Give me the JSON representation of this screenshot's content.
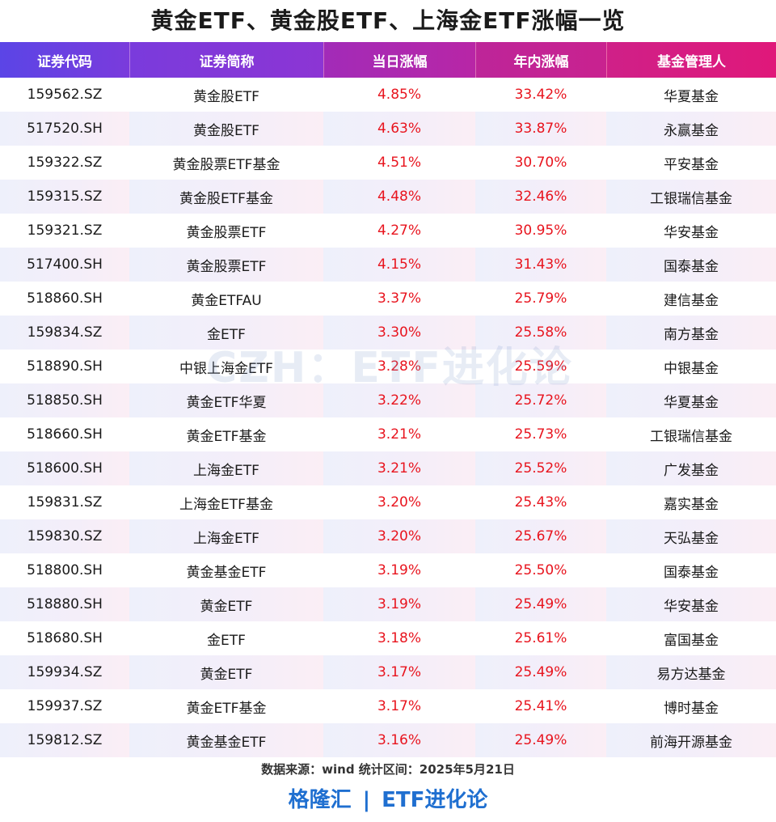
{
  "title": "黄金ETF、黄金股ETF、上海金ETF涨幅一览",
  "columns": [
    "证券代码",
    "证券简称",
    "当日涨幅",
    "年内涨幅",
    "基金管理人"
  ],
  "rows": [
    {
      "code": "159562.SZ",
      "name": "黄金股ETF",
      "day": "4.85%",
      "ytd": "33.42%",
      "manager": "华夏基金"
    },
    {
      "code": "517520.SH",
      "name": "黄金股ETF",
      "day": "4.63%",
      "ytd": "33.87%",
      "manager": "永赢基金"
    },
    {
      "code": "159322.SZ",
      "name": "黄金股票ETF基金",
      "day": "4.51%",
      "ytd": "30.70%",
      "manager": "平安基金"
    },
    {
      "code": "159315.SZ",
      "name": "黄金股ETF基金",
      "day": "4.48%",
      "ytd": "32.46%",
      "manager": "工银瑞信基金"
    },
    {
      "code": "159321.SZ",
      "name": "黄金股票ETF",
      "day": "4.27%",
      "ytd": "30.95%",
      "manager": "华安基金"
    },
    {
      "code": "517400.SH",
      "name": "黄金股票ETF",
      "day": "4.15%",
      "ytd": "31.43%",
      "manager": "国泰基金"
    },
    {
      "code": "518860.SH",
      "name": "黄金ETFAU",
      "day": "3.37%",
      "ytd": "25.79%",
      "manager": "建信基金"
    },
    {
      "code": "159834.SZ",
      "name": "金ETF",
      "day": "3.30%",
      "ytd": "25.58%",
      "manager": "南方基金"
    },
    {
      "code": "518890.SH",
      "name": "中银上海金ETF",
      "day": "3.28%",
      "ytd": "25.59%",
      "manager": "中银基金"
    },
    {
      "code": "518850.SH",
      "name": "黄金ETF华夏",
      "day": "3.22%",
      "ytd": "25.72%",
      "manager": "华夏基金"
    },
    {
      "code": "518660.SH",
      "name": "黄金ETF基金",
      "day": "3.21%",
      "ytd": "25.73%",
      "manager": "工银瑞信基金"
    },
    {
      "code": "518600.SH",
      "name": "上海金ETF",
      "day": "3.21%",
      "ytd": "25.52%",
      "manager": "广发基金"
    },
    {
      "code": "159831.SZ",
      "name": "上海金ETF基金",
      "day": "3.20%",
      "ytd": "25.43%",
      "manager": "嘉实基金"
    },
    {
      "code": "159830.SZ",
      "name": "上海金ETF",
      "day": "3.20%",
      "ytd": "25.67%",
      "manager": "天弘基金"
    },
    {
      "code": "518800.SH",
      "name": "黄金基金ETF",
      "day": "3.19%",
      "ytd": "25.50%",
      "manager": "国泰基金"
    },
    {
      "code": "518880.SH",
      "name": "黄金ETF",
      "day": "3.19%",
      "ytd": "25.49%",
      "manager": "华安基金"
    },
    {
      "code": "518680.SH",
      "name": "金ETF",
      "day": "3.18%",
      "ytd": "25.61%",
      "manager": "富国基金"
    },
    {
      "code": "159934.SZ",
      "name": "黄金ETF",
      "day": "3.17%",
      "ytd": "25.49%",
      "manager": "易方达基金"
    },
    {
      "code": "159937.SZ",
      "name": "黄金ETF基金",
      "day": "3.17%",
      "ytd": "25.41%",
      "manager": "博时基金"
    },
    {
      "code": "159812.SZ",
      "name": "黄金基金ETF",
      "day": "3.16%",
      "ytd": "25.49%",
      "manager": "前海开源基金"
    }
  ],
  "watermark": "CZH：ETF进化论",
  "source": "数据来源：wind   统计区间：2025年5月21日",
  "brand": {
    "left": "格隆汇",
    "separator": "|",
    "right": "ETF进化论"
  },
  "colors": {
    "header_start": "#5b45e6",
    "header_end": "#e0187a",
    "up": "#e8141e",
    "brand": "#1f6fd0"
  }
}
